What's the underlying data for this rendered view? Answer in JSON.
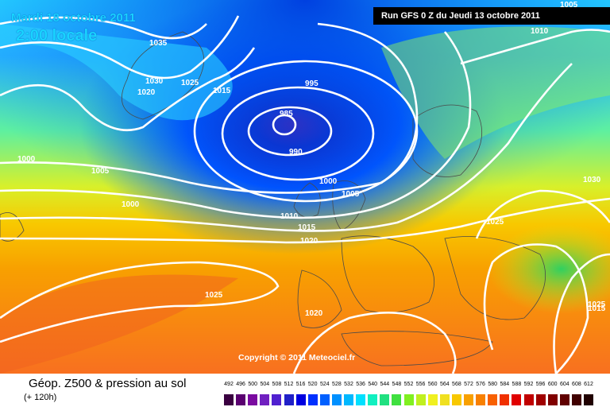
{
  "header": {
    "title": "Mardi 18 octobre 2011",
    "local_time": "2:00 locale",
    "run_info": "Run GFS 0 Z du Jeudi 13 octobre 2011"
  },
  "map": {
    "copyright": "Copyright © 2011 Meteociel.fr",
    "pressure_labels": [
      "1005",
      "1010",
      "1035",
      "1030",
      "1020",
      "1025",
      "1015",
      "995",
      "985",
      "990",
      "1000",
      "1005",
      "1000",
      "1000",
      "1005",
      "1010",
      "1015",
      "1020",
      "1025",
      "1030",
      "1025",
      "1020",
      "1025",
      "1015"
    ]
  },
  "footer": {
    "title": "Géop. Z500 & pression au sol",
    "subtitle": "(+ 120h)"
  },
  "legend": {
    "ticks": [
      "492",
      "496",
      "500",
      "504",
      "508",
      "512",
      "516",
      "520",
      "524",
      "528",
      "532",
      "536",
      "540",
      "544",
      "548",
      "552",
      "556",
      "560",
      "564",
      "568",
      "572",
      "576",
      "580",
      "584",
      "588",
      "592",
      "596",
      "600",
      "604",
      "608",
      "612"
    ],
    "colors": [
      "#3a0040",
      "#5a0070",
      "#7a0aa0",
      "#7020c0",
      "#5020d0",
      "#2020c8",
      "#0000e0",
      "#0030ff",
      "#0060ff",
      "#0090ff",
      "#00b8ff",
      "#00e0ff",
      "#10f0c0",
      "#20e080",
      "#40e040",
      "#80f020",
      "#c0f020",
      "#f0f020",
      "#f0e020",
      "#f8c800",
      "#f8a000",
      "#f88000",
      "#f86000",
      "#f03000",
      "#e00000",
      "#c00000",
      "#a00000",
      "#800000",
      "#600000",
      "#400000",
      "#200000"
    ]
  }
}
